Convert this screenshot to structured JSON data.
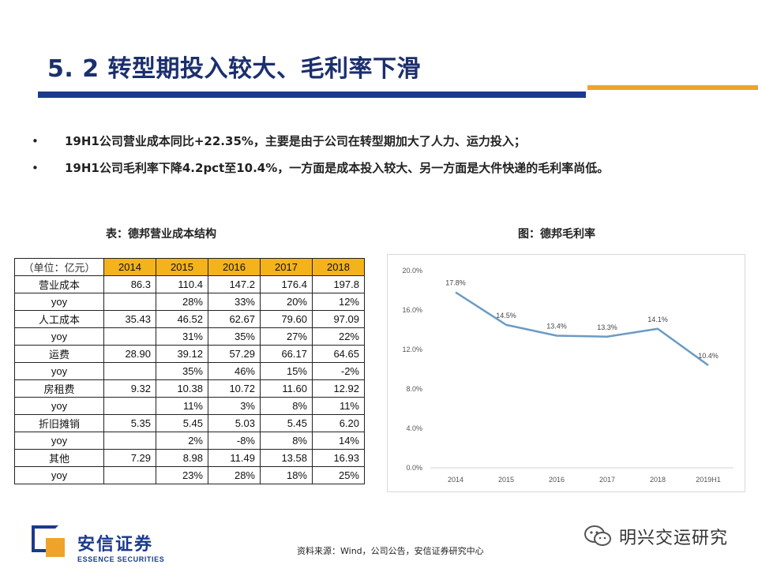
{
  "header": {
    "title": "5. 2 转型期投入较大、毛利率下滑"
  },
  "bullets": [
    {
      "marker": "•",
      "text": "19H1公司营业成本同比+22.35%，主要是由于公司在转型期加大了人力、运力投入；"
    },
    {
      "marker": "•",
      "text": "19H1公司毛利率下降4.2pct至10.4%，一方面是成本投入较大、另一方面是大件快递的毛利率尚低。"
    }
  ],
  "table": {
    "caption": "表：德邦营业成本结构",
    "unit_label": "（单位：亿元）",
    "years": [
      "2014",
      "2015",
      "2016",
      "2017",
      "2018"
    ],
    "rows": [
      {
        "label": "营业成本",
        "values": [
          "86.3",
          "110.4",
          "147.2",
          "176.4",
          "197.8"
        ]
      },
      {
        "label": "yoy",
        "values": [
          "",
          "28%",
          "33%",
          "20%",
          "12%"
        ]
      },
      {
        "label": "人工成本",
        "values": [
          "35.43",
          "46.52",
          "62.67",
          "79.60",
          "97.09"
        ]
      },
      {
        "label": "yoy",
        "values": [
          "",
          "31%",
          "35%",
          "27%",
          "22%"
        ]
      },
      {
        "label": "运费",
        "values": [
          "28.90",
          "39.12",
          "57.29",
          "66.17",
          "64.65"
        ]
      },
      {
        "label": "yoy",
        "values": [
          "",
          "35%",
          "46%",
          "15%",
          "-2%"
        ]
      },
      {
        "label": "房租费",
        "values": [
          "9.32",
          "10.38",
          "10.72",
          "11.60",
          "12.92"
        ]
      },
      {
        "label": "yoy",
        "values": [
          "",
          "11%",
          "3%",
          "8%",
          "11%"
        ]
      },
      {
        "label": "折旧摊销",
        "values": [
          "5.35",
          "5.45",
          "5.03",
          "5.45",
          "6.20"
        ]
      },
      {
        "label": "yoy",
        "values": [
          "",
          "2%",
          "-8%",
          "8%",
          "14%"
        ]
      },
      {
        "label": "其他",
        "values": [
          "7.29",
          "8.98",
          "11.49",
          "13.58",
          "16.93"
        ]
      },
      {
        "label": "yoy",
        "values": [
          "",
          "23%",
          "28%",
          "18%",
          "25%"
        ]
      }
    ]
  },
  "chart_data": {
    "type": "line",
    "title": "图：德邦毛利率",
    "categories": [
      "2014",
      "2015",
      "2016",
      "2017",
      "2018",
      "2019H1"
    ],
    "series": [
      {
        "values": [
          17.8,
          14.5,
          13.4,
          13.3,
          14.1,
          10.4
        ],
        "data_labels": [
          "17.8%",
          "14.5%",
          "13.4%",
          "13.3%",
          "14.1%",
          "10.4%"
        ],
        "color": "#6b9bc3"
      }
    ],
    "ylim": [
      0,
      20
    ],
    "yticks": [
      "0.0%",
      "4.0%",
      "8.0%",
      "12.0%",
      "16.0%",
      "20.0%"
    ],
    "grid": false,
    "legend": "none"
  },
  "footer": {
    "source": "资料来源：Wind，公司公告，安信证券研究中心",
    "logo_cn": "安信证券",
    "logo_en": "ESSENCE SECURITIES",
    "wechat_name": "明兴交运研究"
  },
  "colors": {
    "navy": "#1b3a8c",
    "orange": "#f0a32a",
    "table_header": "#f4b21b"
  }
}
